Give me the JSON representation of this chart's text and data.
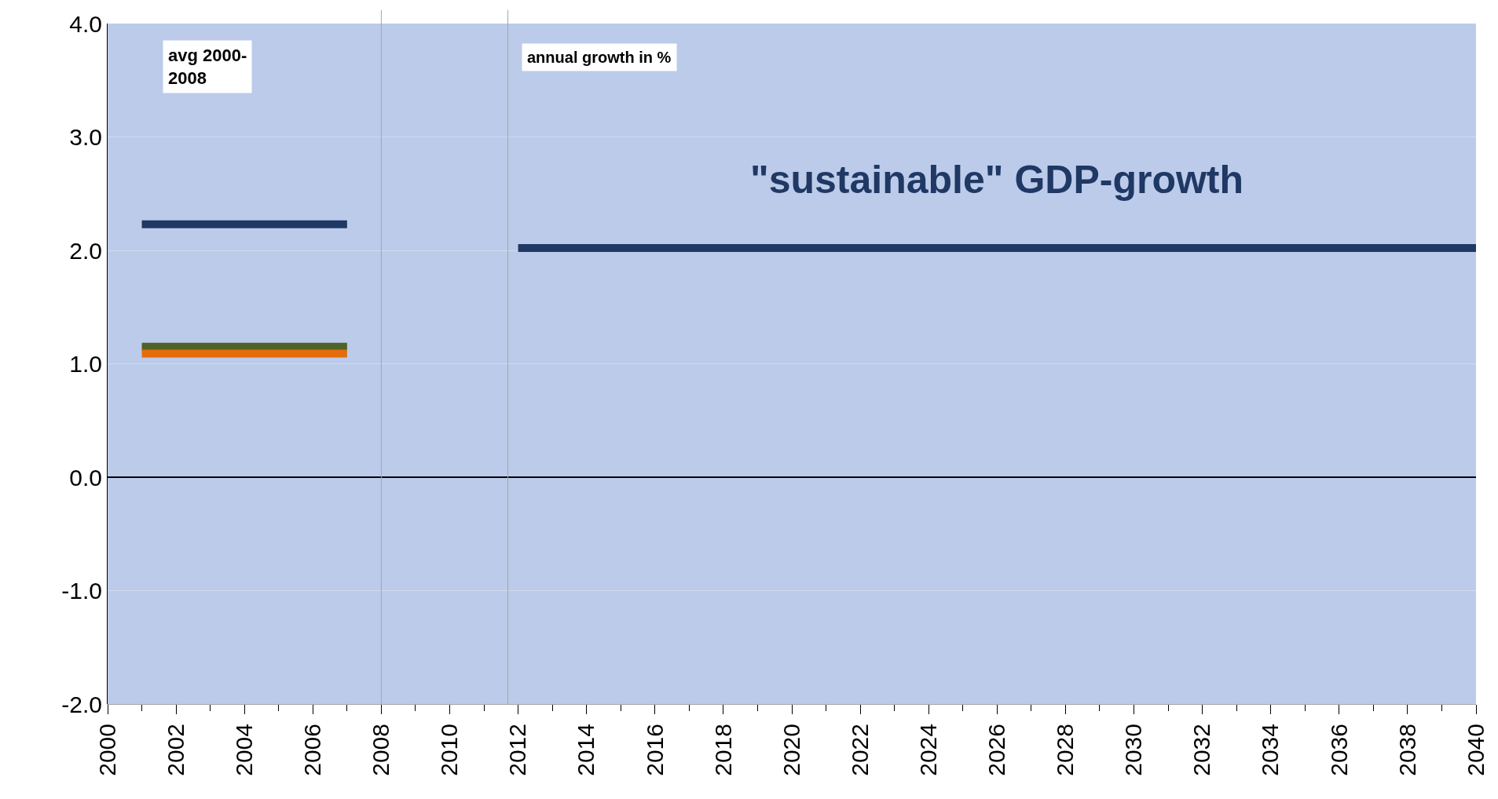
{
  "chart_data": {
    "type": "line",
    "series": [
      {
        "color": "#1f3864",
        "x": [
          2001,
          2007
        ],
        "values": [
          2.23,
          2.23
        ]
      },
      {
        "color": "#4f6228",
        "x": [
          2001,
          2007
        ],
        "values": [
          1.15,
          1.15
        ]
      },
      {
        "color": "#e46c0a",
        "x": [
          2001,
          2007
        ],
        "values": [
          1.09,
          1.09
        ]
      },
      {
        "color": "#1f3864",
        "x": [
          2012,
          2040
        ],
        "values": [
          2.02,
          2.02
        ]
      }
    ],
    "xlim": [
      2000,
      2040
    ],
    "xticks": [
      2000,
      2002,
      2004,
      2006,
      2008,
      2010,
      2012,
      2014,
      2016,
      2018,
      2020,
      2022,
      2024,
      2026,
      2028,
      2030,
      2032,
      2034,
      2036,
      2038,
      2040
    ],
    "ylim": [
      -2,
      4
    ],
    "yticks": [
      {
        "value": -2,
        "label": "-2.0"
      },
      {
        "value": -1,
        "label": "-1.0"
      },
      {
        "value": 0,
        "label": "0.0"
      },
      {
        "value": 1,
        "label": "1.0"
      },
      {
        "value": 2,
        "label": "2.0"
      },
      {
        "value": 3,
        "label": "3.0"
      },
      {
        "value": 4,
        "label": "4.0"
      }
    ],
    "ref_lines": [
      {
        "axis": "x",
        "value": 2008,
        "color": "#a6a6a6"
      },
      {
        "axis": "x",
        "value": 2011.7,
        "color": "#a6a6a6"
      }
    ],
    "annotations": [
      "avg 2000-\n2008",
      "annual growth in %",
      "\"sustainable\" GDP-growth"
    ],
    "grid": "y",
    "marker": "none",
    "line_style": "solid"
  }
}
